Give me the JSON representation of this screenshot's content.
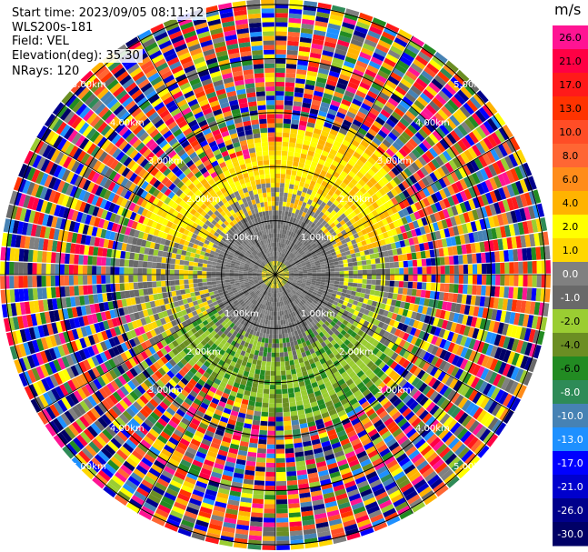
{
  "info": {
    "start_time": "Start time: 2023/09/05 08:11:12",
    "station": "WLS200s-181",
    "field": "Field: VEL",
    "elevation": "Elevation(deg): 35.30",
    "nrays": "NRays: 120"
  },
  "chart_data": {
    "type": "heatmap",
    "projection": "polar PPI",
    "field": "VEL",
    "unit": "m/s",
    "n_rays": 120,
    "elevation_deg": 35.3,
    "range_ring_labels": [
      "1.00km",
      "2.00km",
      "3.00km",
      "4.00km",
      "5.00km"
    ],
    "range_ring_values_km": [
      1,
      2,
      3,
      4,
      5
    ],
    "colorbar": {
      "title": "m/s",
      "ticks": [
        "26.0",
        "21.0",
        "17.0",
        "13.0",
        "10.0",
        "8.0",
        "6.0",
        "4.0",
        "2.0",
        "1.0",
        "0.0",
        "-1.0",
        "-2.0",
        "-4.0",
        "-6.0",
        "-8.0",
        "-10.0",
        "-13.0",
        "-17.0",
        "-21.0",
        "-26.0",
        "-30.0"
      ],
      "colors": [
        "#ff1493",
        "#ff0044",
        "#ff1a1a",
        "#ff3300",
        "#ff4d26",
        "#ff6633",
        "#ff8c1a",
        "#ffb300",
        "#ffff00",
        "#ffd700",
        "#808080",
        "#696969",
        "#9acd32",
        "#6b8e23",
        "#228b22",
        "#2e8b57",
        "#4682b4",
        "#1e90ff",
        "#0000ff",
        "#0000cd",
        "#00008b",
        "#000066"
      ]
    },
    "regions": {
      "inner_gray_ring_km": [
        0.0,
        1.1
      ],
      "positive_yellow_sector_north": "~1.0 to 4.0",
      "negative_green_sector_south": "~-1.0 to -4.0",
      "noise_outer_km": [
        2.8,
        5.0
      ]
    }
  }
}
